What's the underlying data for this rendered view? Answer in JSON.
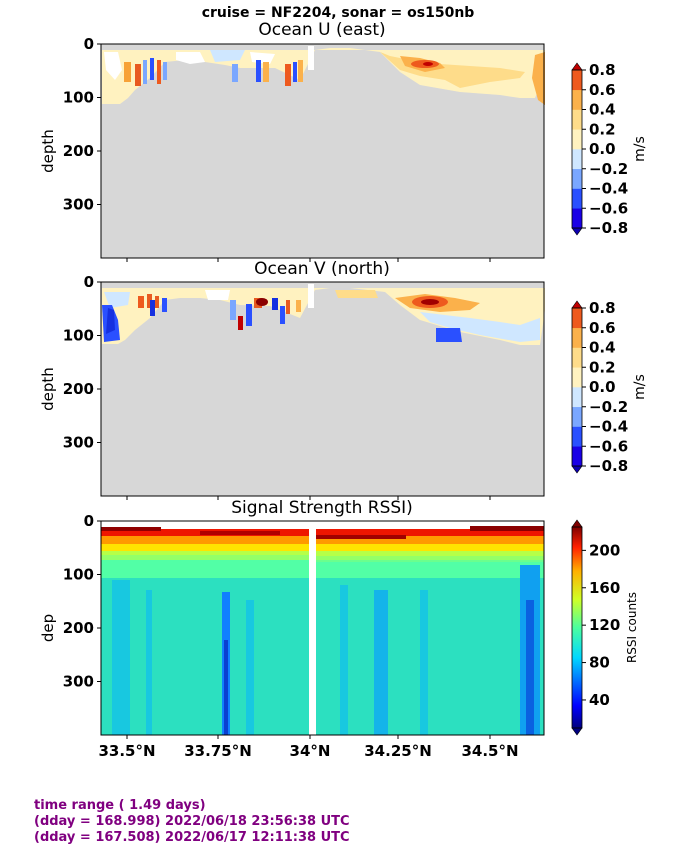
{
  "suptitle": "cruise = NF2204,  sonar = os150nb",
  "footer": {
    "line1": "time range ( 1.49 days)",
    "line2": "(dday = 168.998) 2022/06/18 23:56:38 UTC",
    "line3": "(dday = 167.508) 2022/06/17 12:11:38 UTC"
  },
  "colors": {
    "bad_data_gray": "#d7d7d7",
    "footer_text": "#800080"
  },
  "chart_data": [
    {
      "type": "heatmap",
      "title": "Ocean U (east)",
      "ylabel": "depth",
      "y_ticks": [
        "0",
        "100",
        "200",
        "300"
      ],
      "x_ticks": [],
      "ylim": [
        400,
        0
      ],
      "colorbar": {
        "label": "m/s",
        "ticks": [
          "0.8",
          "0.6",
          "0.4",
          "0.2",
          "0.0",
          "−0.2",
          "−0.4",
          "−0.6",
          "−0.8"
        ],
        "range": [
          -0.8,
          0.8
        ]
      }
    },
    {
      "type": "heatmap",
      "title": "Ocean V (north)",
      "ylabel": "depth",
      "y_ticks": [
        "0",
        "100",
        "200",
        "300"
      ],
      "x_ticks": [],
      "ylim": [
        400,
        0
      ],
      "colorbar": {
        "label": "m/s",
        "ticks": [
          "0.8",
          "0.6",
          "0.4",
          "0.2",
          "0.0",
          "−0.2",
          "−0.4",
          "−0.6",
          "−0.8"
        ],
        "range": [
          -0.8,
          0.8
        ]
      }
    },
    {
      "type": "heatmap",
      "title": "Signal Strength RSSI)",
      "ylabel": "dep",
      "y_ticks": [
        "0",
        "100",
        "200",
        "300"
      ],
      "x_ticks": [
        "33.5°N",
        "33.75°N",
        "34°N",
        "34.25°N",
        "34.5°N"
      ],
      "ylim": [
        400,
        0
      ],
      "colorbar": {
        "label": "RSSI counts",
        "ticks": [
          "200",
          "160",
          "120",
          "80",
          "40"
        ],
        "range": [
          10,
          225
        ]
      }
    }
  ]
}
